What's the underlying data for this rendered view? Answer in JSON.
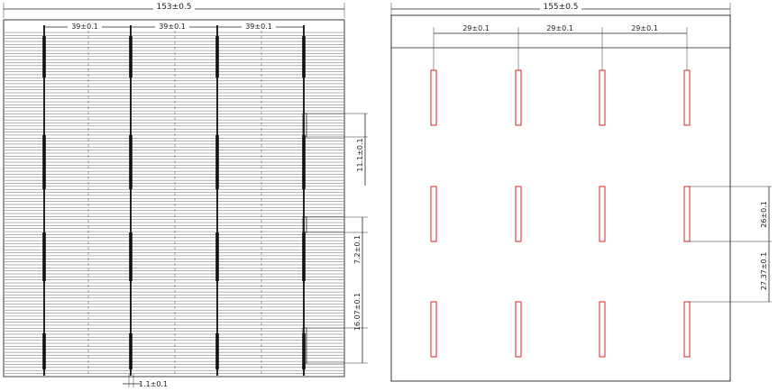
{
  "front_view": {
    "overall_width": "153±0.5",
    "busbar_pitch_labels": [
      "39±0.1",
      "39±0.1",
      "39±0.1"
    ],
    "segment_height_1": "11.1±0.1",
    "segment_gap": "7.2±0.1",
    "segment_height_2": "16.07±0.1",
    "busbar_width": "1.1±0.1"
  },
  "back_view": {
    "overall_width": "155±0.5",
    "pad_pitch_labels": [
      "29±0.1",
      "29±0.1",
      "29±0.1"
    ],
    "pad_length": "26±0.1",
    "pad_gap": "27.37±0.1",
    "pad_color": "#d9262b"
  }
}
